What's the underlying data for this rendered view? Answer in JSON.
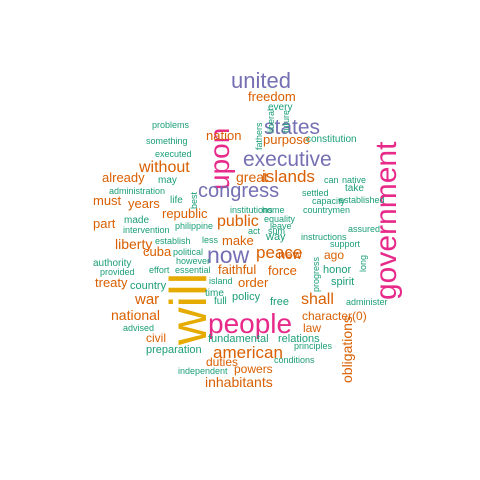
{
  "cloud": {
    "palette": {
      "green": "#1b9e77",
      "orange": "#d95f02",
      "purple": "#7570b3",
      "magenta": "#e7298a",
      "gold": "#e6ab02"
    },
    "words": [
      {
        "text": "will",
        "color": "gold"
      },
      {
        "text": "government",
        "color": "magenta"
      },
      {
        "text": "people",
        "color": "magenta"
      },
      {
        "text": "upon",
        "color": "magenta"
      },
      {
        "text": "now",
        "color": "purple"
      },
      {
        "text": "united",
        "color": "purple"
      },
      {
        "text": "executive",
        "color": "purple"
      },
      {
        "text": "states",
        "color": "purple"
      },
      {
        "text": "congress",
        "color": "purple"
      },
      {
        "text": "american",
        "color": "orange"
      },
      {
        "text": "islands",
        "color": "orange"
      },
      {
        "text": "peace",
        "color": "orange"
      },
      {
        "text": "shall",
        "color": "orange"
      },
      {
        "text": "public",
        "color": "orange"
      },
      {
        "text": "without",
        "color": "orange"
      },
      {
        "text": "war",
        "color": "orange"
      },
      {
        "text": "obligations",
        "color": "orange"
      },
      {
        "text": "national",
        "color": "orange"
      },
      {
        "text": "inhabitants",
        "color": "orange"
      },
      {
        "text": "great",
        "color": "orange"
      },
      {
        "text": "liberty",
        "color": "orange"
      },
      {
        "text": "freedom",
        "color": "orange"
      },
      {
        "text": "nation",
        "color": "orange"
      },
      {
        "text": "purpose",
        "color": "orange"
      },
      {
        "text": "already",
        "color": "orange"
      },
      {
        "text": "years",
        "color": "orange"
      },
      {
        "text": "must",
        "color": "orange"
      },
      {
        "text": "part",
        "color": "orange"
      },
      {
        "text": "republic",
        "color": "orange"
      },
      {
        "text": "cuba",
        "color": "orange"
      },
      {
        "text": "treaty",
        "color": "orange"
      },
      {
        "text": "make",
        "color": "orange"
      },
      {
        "text": "faithful",
        "color": "orange"
      },
      {
        "text": "order",
        "color": "orange"
      },
      {
        "text": "new",
        "color": "orange"
      },
      {
        "text": "force",
        "color": "orange"
      },
      {
        "text": "ago",
        "color": "orange"
      },
      {
        "text": "character(0)",
        "color": "orange"
      },
      {
        "text": "law",
        "color": "orange"
      },
      {
        "text": "civil",
        "color": "orange"
      },
      {
        "text": "duties",
        "color": "orange"
      },
      {
        "text": "powers",
        "color": "orange"
      },
      {
        "text": "way",
        "color": "green"
      },
      {
        "text": "country",
        "color": "green"
      },
      {
        "text": "policy",
        "color": "green"
      },
      {
        "text": "free",
        "color": "green"
      },
      {
        "text": "fundamental",
        "color": "green"
      },
      {
        "text": "relations",
        "color": "green"
      },
      {
        "text": "preparation",
        "color": "green"
      },
      {
        "text": "honor",
        "color": "green"
      },
      {
        "text": "spirit",
        "color": "green"
      },
      {
        "text": "every",
        "color": "green"
      },
      {
        "text": "constitution",
        "color": "green"
      },
      {
        "text": "authority",
        "color": "green"
      },
      {
        "text": "life",
        "color": "green"
      },
      {
        "text": "may",
        "color": "green"
      },
      {
        "text": "made",
        "color": "green"
      },
      {
        "text": "time",
        "color": "green"
      },
      {
        "text": "full",
        "color": "green"
      },
      {
        "text": "take",
        "color": "green"
      },
      {
        "text": "problems",
        "color": "green"
      },
      {
        "text": "something",
        "color": "green"
      },
      {
        "text": "executed",
        "color": "green"
      },
      {
        "text": "fathers",
        "color": "green"
      },
      {
        "text": "liberal",
        "color": "green"
      },
      {
        "text": "future",
        "color": "green"
      },
      {
        "text": "administration",
        "color": "green"
      },
      {
        "text": "intervention",
        "color": "green"
      },
      {
        "text": "best",
        "color": "green"
      },
      {
        "text": "institutions",
        "color": "green"
      },
      {
        "text": "home",
        "color": "green"
      },
      {
        "text": "countrymen",
        "color": "green"
      },
      {
        "text": "can",
        "color": "green"
      },
      {
        "text": "native",
        "color": "green"
      },
      {
        "text": "settled",
        "color": "green"
      },
      {
        "text": "capacity",
        "color": "green"
      },
      {
        "text": "established",
        "color": "green"
      },
      {
        "text": "philippine",
        "color": "green"
      },
      {
        "text": "equality",
        "color": "green"
      },
      {
        "text": "leave",
        "color": "green"
      },
      {
        "text": "assured",
        "color": "green"
      },
      {
        "text": "act",
        "color": "green"
      },
      {
        "text": "sum",
        "color": "green"
      },
      {
        "text": "instructions",
        "color": "green"
      },
      {
        "text": "support",
        "color": "green"
      },
      {
        "text": "establish",
        "color": "green"
      },
      {
        "text": "less",
        "color": "green"
      },
      {
        "text": "political",
        "color": "green"
      },
      {
        "text": "however",
        "color": "green"
      },
      {
        "text": "provided",
        "color": "green"
      },
      {
        "text": "effort",
        "color": "green"
      },
      {
        "text": "essential",
        "color": "green"
      },
      {
        "text": "island",
        "color": "green"
      },
      {
        "text": "progress",
        "color": "green"
      },
      {
        "text": "long",
        "color": "green"
      },
      {
        "text": "administer",
        "color": "green"
      },
      {
        "text": "advised",
        "color": "green"
      },
      {
        "text": "conditions",
        "color": "green"
      },
      {
        "text": "principles",
        "color": "green"
      },
      {
        "text": "independent",
        "color": "green"
      }
    ]
  }
}
